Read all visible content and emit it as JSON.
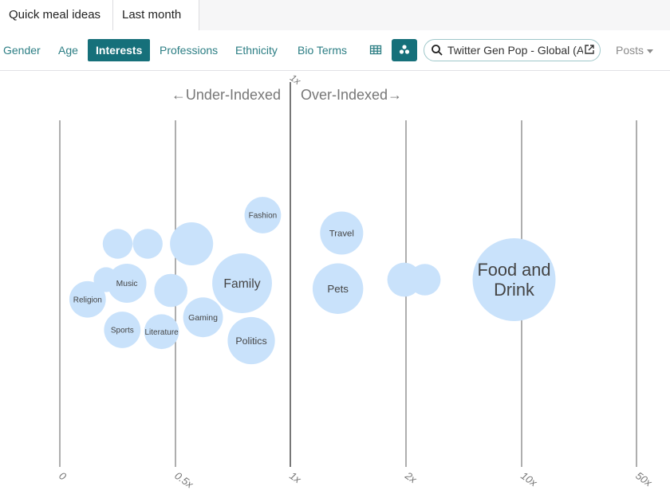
{
  "topbar": {
    "title": "Quick meal ideas",
    "period": "Last month"
  },
  "tabs": [
    {
      "label": "Gender",
      "active": false
    },
    {
      "label": "Age",
      "active": false
    },
    {
      "label": "Interests",
      "active": true
    },
    {
      "label": "Professions",
      "active": false
    },
    {
      "label": "Ethnicity",
      "active": false
    },
    {
      "label": "Bio Terms",
      "active": false
    }
  ],
  "view_toggle": {
    "table_icon": "table-grid-icon",
    "bubble_icon": "bubble-chart-icon",
    "selected": "bubble"
  },
  "search": {
    "value": "Twitter Gen Pop - Global (A",
    "icon": "search-icon",
    "external_icon": "external-link-icon"
  },
  "metric_select": {
    "value": "Posts"
  },
  "colors": {
    "accent": "#16707a",
    "tab_text": "#2c7e84",
    "bubble": "#c9e2fb",
    "axis": "#8c8c8c"
  },
  "chart_data": {
    "type": "scatter",
    "direction_labels": {
      "left": "←Under-Indexed",
      "right": "Over-Indexed→"
    },
    "top_marker": "1x",
    "axis_ticks": [
      "0",
      "0.5x",
      "1x",
      "2x",
      "10x",
      "50x"
    ],
    "bubbles": [
      {
        "label": "",
        "index": 0.2,
        "row": 0.0,
        "size": 0.3
      },
      {
        "label": "",
        "index": 0.25,
        "row": -1.0,
        "size": 0.36
      },
      {
        "label": "",
        "index": 0.38,
        "row": -1.0,
        "size": 0.36
      },
      {
        "label": "",
        "index": 0.57,
        "row": -1.0,
        "size": 0.52
      },
      {
        "label": "Fashion",
        "index": 0.88,
        "row": -1.8,
        "size": 0.44
      },
      {
        "label": "Music",
        "index": 0.29,
        "row": 0.1,
        "size": 0.47
      },
      {
        "label": "",
        "index": 0.48,
        "row": 0.3,
        "size": 0.4
      },
      {
        "label": "Family",
        "index": 0.79,
        "row": 0.1,
        "size": 0.72
      },
      {
        "label": "Religion",
        "index": 0.12,
        "row": 0.55,
        "size": 0.44
      },
      {
        "label": "Sports",
        "index": 0.27,
        "row": 1.4,
        "size": 0.44
      },
      {
        "label": "Literature",
        "index": 0.44,
        "row": 1.45,
        "size": 0.42
      },
      {
        "label": "Gaming",
        "index": 0.62,
        "row": 1.05,
        "size": 0.48
      },
      {
        "label": "Politics",
        "index": 0.83,
        "row": 1.7,
        "size": 0.57
      },
      {
        "label": "Travel",
        "index": 1.36,
        "row": -1.3,
        "size": 0.52
      },
      {
        "label": "Pets",
        "index": 1.33,
        "row": 0.25,
        "size": 0.61
      },
      {
        "label": "",
        "index": 1.98,
        "row": 0.0,
        "size": 0.41
      },
      {
        "label": "",
        "index": 2.6,
        "row": 0.0,
        "size": 0.38
      },
      {
        "label": "Food and Drink",
        "index": 9.0,
        "row": 0.0,
        "size": 1.0
      }
    ]
  }
}
